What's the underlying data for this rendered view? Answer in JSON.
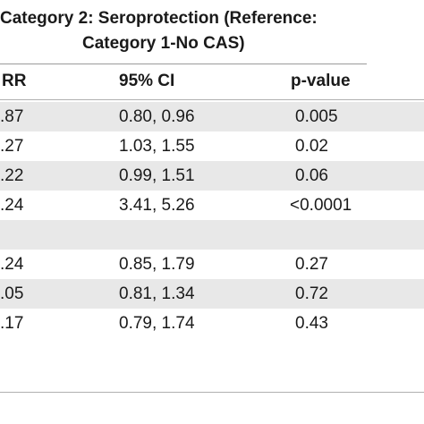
{
  "title": {
    "line1": "Category 2: Seroprotection (Reference:",
    "line2": "Category 1-No CAS)"
  },
  "headers": {
    "rr": "RR",
    "ci": "95% CI",
    "p": "p-value"
  },
  "rows": [
    {
      "rr": ".87",
      "ci": "0.80, 0.96",
      "p": "0.005"
    },
    {
      "rr": ".27",
      "ci": "1.03, 1.55",
      "p": "0.02"
    },
    {
      "rr": ".22",
      "ci": "0.99, 1.51",
      "p": "0.06"
    },
    {
      "rr": ".24",
      "ci": "3.41, 5.26",
      "p": "<0.0001"
    },
    {
      "rr": "",
      "ci": "",
      "p": ""
    },
    {
      "rr": ".24",
      "ci": "0.85, 1.79",
      "p": "0.27"
    },
    {
      "rr": ".05",
      "ci": "0.81, 1.34",
      "p": "0.72"
    },
    {
      "rr": ".17",
      "ci": "0.79, 1.74",
      "p": "0.43"
    }
  ],
  "colors": {
    "shaded_row": "#e8e8e8",
    "rule": "#9a9a9a",
    "text": "#1a1a1a"
  }
}
